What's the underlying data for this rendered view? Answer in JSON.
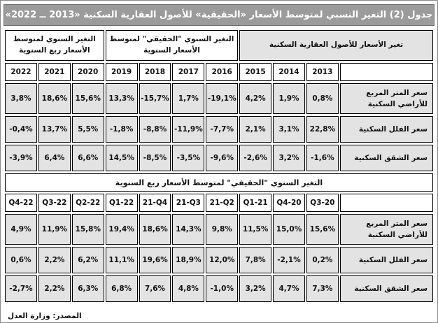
{
  "title": "جدول (2) التغير النسبي لمتوسط الأسعار «الحقيقية» للأصول العقارية السكنية «2013 ــ 2022»",
  "colors": {
    "title_bar_bg": "#9b9b9b",
    "title_text": "#ffffff",
    "cell_gray": "#e3e3e3",
    "header_white": "#ffffff",
    "border": "#000000"
  },
  "annual": {
    "section_headers": [
      {
        "label": "تغير الأسعار للأصول العقارية السكنية"
      },
      {
        "label": "التغير السنوي \"الحقيقي\" لمتوسط الأسعار السنوية"
      },
      {
        "label": "التغير السنوي لمتوسط الأسعار ربع السنوية"
      }
    ],
    "years_rtl": [
      "2013",
      "2014",
      "2015",
      "2016",
      "2017",
      "2018",
      "2019",
      "2020",
      "2021",
      "2022"
    ],
    "rows": [
      {
        "label": "سعر المتر المربع للأراضي السكنية",
        "values": [
          "0,8%",
          "1,9%",
          "4,2%",
          "-19,1%",
          "1,7%",
          "-15,7%",
          "13,3%",
          "15,6%",
          "18,6%",
          "3,8%"
        ]
      },
      {
        "label": "سعر الفلل السكنية",
        "values": [
          "22,8%",
          "3,1%",
          "2,1%",
          "-7,7%",
          "-11,9%",
          "-8,8%",
          "-1,8%",
          "5,5%",
          "13,7%",
          "-0,4%"
        ]
      },
      {
        "label": "سعر الشقق السكنية",
        "values": [
          "-1,6%",
          "3,2%",
          "-2,6%",
          "-9,6%",
          "-3,5%",
          "-8,5%",
          "14,5%",
          "6,6%",
          "6,4%",
          "-3,9%"
        ]
      }
    ]
  },
  "quarterly": {
    "band_title": "التغير السنوي \"الحقيقي\" لمتوسط الأسعار ربع السنوية",
    "quarters_rtl": [
      "Q3-20",
      "Q4-20",
      "Q1-21",
      "21-Q2",
      "21-Q3",
      "21-Q4",
      "Q1-22",
      "Q2-22",
      "Q3-22",
      "Q4-22"
    ],
    "rows": [
      {
        "label": "سعر المتر المربع للأراضي السكنية",
        "values": [
          "15,6%",
          "15,0%",
          "11,5%",
          "9,8%",
          "14,3%",
          "18,6%",
          "19,4%",
          "15,8%",
          "11,9%",
          "4,9%"
        ]
      },
      {
        "label": "سعر الفلل السكنية",
        "values": [
          "0,2%",
          "-2,1%",
          "7,8%",
          "12,0%",
          "18,9%",
          "19,6%",
          "11,1%",
          "6,2%",
          "2,2%",
          "0,6%"
        ]
      },
      {
        "label": "سعر الشقق السكنية",
        "values": [
          "7,3%",
          "4,7%",
          "3,2%",
          "-1,0%",
          "4,8%",
          "7,6%",
          "6,8%",
          "6,3%",
          "2,2%",
          "-2,7%"
        ]
      }
    ]
  },
  "footer": {
    "source": "المصدر: وزارة العدل"
  }
}
